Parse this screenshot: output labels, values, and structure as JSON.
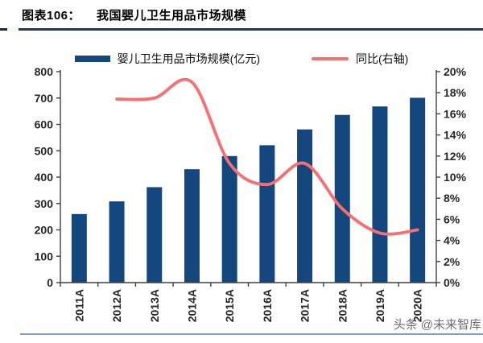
{
  "header": {
    "figure_label": "图表106：",
    "title": "我国婴儿卫生用品市场规模"
  },
  "watermark": "头条 @未来智库",
  "colors": {
    "bar": "#15477F",
    "line": "#F96F6F",
    "axis": "#404040",
    "tick_text": "#262626",
    "title_underline": "#1F3864",
    "rule_stub": "#16294F",
    "bottom_rule": "#7E9FCC"
  },
  "chart_data": {
    "type": "bar+line combo",
    "title": "我国婴儿卫生用品市场规模",
    "categories": [
      "2011A",
      "2012A",
      "2013A",
      "2014A",
      "2015A",
      "2016A",
      "2017A",
      "2018A",
      "2019A",
      "2020A"
    ],
    "series": [
      {
        "name": "婴儿卫生用品市场规模(亿元)",
        "type": "bar",
        "axis": "left",
        "values": [
          260,
          308,
          362,
          430,
          480,
          521,
          581,
          636,
          668,
          701
        ]
      },
      {
        "name": "同比(右轴)",
        "type": "line",
        "axis": "right",
        "values": [
          null,
          17.4,
          17.5,
          19.0,
          11.3,
          9.3,
          11.3,
          7.0,
          4.7,
          5.0
        ]
      }
    ],
    "left_axis": {
      "min": 0,
      "max": 800,
      "step": 100,
      "format": "number"
    },
    "right_axis": {
      "min": 0,
      "max": 20,
      "step": 2,
      "format": "percent"
    },
    "grid": "off",
    "legend_position": "top-center"
  }
}
